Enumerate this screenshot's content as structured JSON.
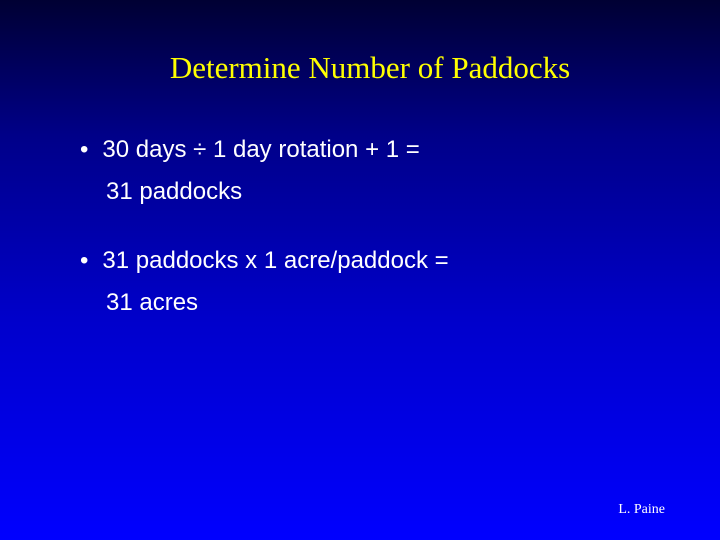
{
  "slide": {
    "title": "Determine Number of Paddocks",
    "title_color": "#ffff00",
    "title_fontsize": 31,
    "body_color": "#ffffff",
    "body_fontsize": 24,
    "background_gradient": {
      "top": "#000033",
      "mid1": "#000088",
      "mid2": "#0000cc",
      "bottom": "#0000ff"
    },
    "bullets": [
      {
        "line1": "30 days ÷  1 day rotation + 1 =",
        "line2": "31 paddocks"
      },
      {
        "line1": "31 paddocks x 1 acre/paddock =",
        "line2": "31 acres"
      }
    ],
    "attribution": "L. Paine",
    "attribution_fontsize": 14
  }
}
